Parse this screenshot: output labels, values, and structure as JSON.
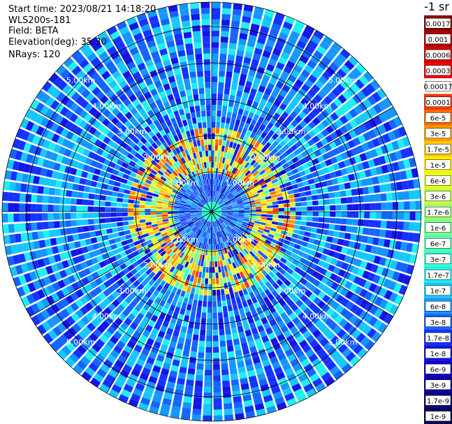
{
  "header": {
    "start_time": "Start time: 2023/08/21 14:18:20",
    "instrument": "WLS200s-181",
    "field": "Field: BETA",
    "elevation": "Elevation(deg): 35.30",
    "nrays": "NRays: 120"
  },
  "colorbar": {
    "title": "-1 sr",
    "labels": [
      "0.0017",
      "0.001",
      "0.0006",
      "0.0003",
      "0.00017",
      "0.0001",
      "6e-5",
      "3e-5",
      "1.7e-5",
      "1e-5",
      "6e-6",
      "3e-6",
      "1.7e-6",
      "1e-6",
      "6e-7",
      "3e-7",
      "1.7e-7",
      "1e-7",
      "6e-8",
      "3e-8",
      "1.7e-8",
      "1e-8",
      "6e-9",
      "3e-9",
      "1.7e-9",
      "1e-9"
    ],
    "colors": [
      "#8b0000",
      "#b00000",
      "#d40000",
      "#f20000",
      "#ffffff",
      "#ff3300",
      "#ff6a00",
      "#ff9a00",
      "#ffc800",
      "#ffee00",
      "#e6ff1a",
      "#c8ff3c",
      "#a0ff64",
      "#78ff8c",
      "#50ffb4",
      "#32ffd2",
      "#1ef0f0",
      "#14c8ff",
      "#1496ff",
      "#1464ff",
      "#1432ff",
      "#1414e6",
      "#1400c8",
      "#1000a0",
      "#0c0078",
      "#080050"
    ]
  },
  "chart_data": {
    "type": "heatmap",
    "projection": "polar (PPI scan)",
    "field": "BETA",
    "nrays": 120,
    "range_unit": "km",
    "range_rings_km": [
      1.0,
      2.0,
      3.0,
      4.0,
      5.0
    ],
    "range_ring_labels": [
      "1.00km",
      "2.00km",
      "3.00km",
      "4.00km",
      "5.00km"
    ],
    "max_range_km": 5.6,
    "colorscale": "log",
    "value_range": [
      1e-09,
      0.0017
    ],
    "note_values": "typical background ~3e-8 to 1e-7; enhanced region ~1.7e-5 to 1e-4 near 1-2 km range"
  }
}
